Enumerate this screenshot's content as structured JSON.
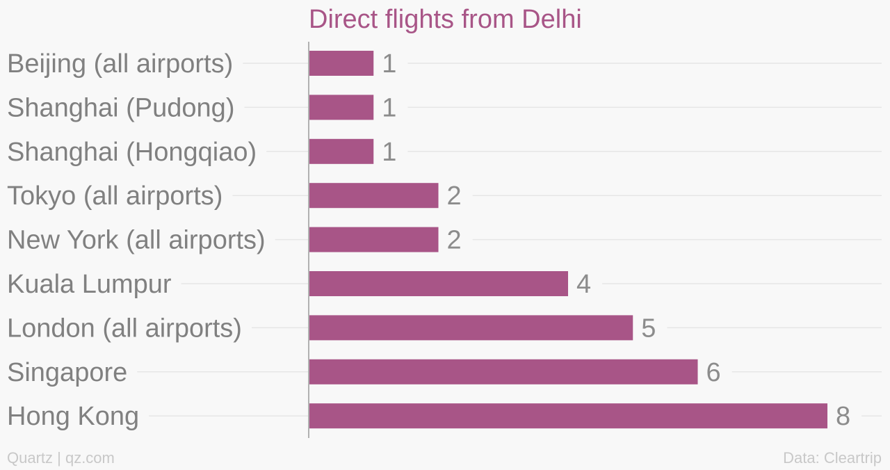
{
  "footer": {
    "credit": "Quartz | qz.com",
    "source": "Data: Cleartrip"
  },
  "colors": {
    "bar": "#a85587",
    "title": "#a85587",
    "label": "#808080",
    "value": "#8c8c8c",
    "grid": "#e6e6e6",
    "axis": "#999999",
    "background": "#f8f8f8",
    "footer": "#c8c8c8"
  },
  "chart_data": {
    "type": "bar",
    "orientation": "horizontal",
    "title": "Direct flights from Delhi",
    "xlabel": "",
    "ylabel": "",
    "categories": [
      "Beijing (all airports)",
      "Shanghai (Pudong)",
      "Shanghai (Hongqiao)",
      "Tokyo (all airports)",
      "New York (all airports)",
      "Kuala Lumpur",
      "London (all airports)",
      "Singapore",
      "Hong Kong"
    ],
    "values": [
      1,
      1,
      1,
      2,
      2,
      4,
      5,
      6,
      8
    ],
    "xlim": [
      0,
      8
    ],
    "grid": true,
    "legend": "none"
  }
}
